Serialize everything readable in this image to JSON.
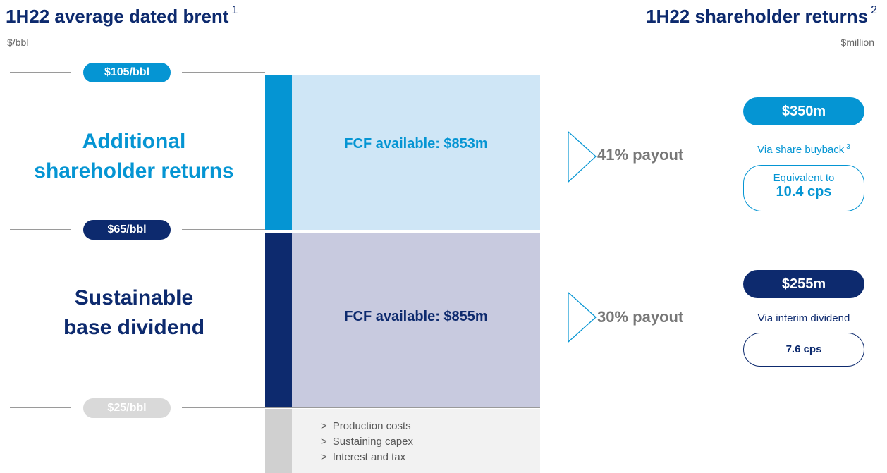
{
  "left_header": {
    "title": "1H22 average dated brent",
    "footnote": "1",
    "unit": "$/bbl"
  },
  "right_header": {
    "title": "1H22 shareholder returns",
    "footnote": "2",
    "unit": "$million"
  },
  "price_levels": [
    "$105/bbl",
    "$65/bbl",
    "$25/bbl"
  ],
  "tiers": [
    {
      "label_lines": [
        "Additional",
        "shareholder returns"
      ],
      "fcf": "FCF available: $853m",
      "payout": "41% payout",
      "amount": "$350m",
      "via": "Via share buyback",
      "via_footnote": "3",
      "equiv_lines": [
        "Equivalent to",
        "10.4 cps"
      ]
    },
    {
      "label_lines": [
        "Sustainable",
        "base dividend"
      ],
      "fcf": "FCF available: $855m",
      "payout": "30% payout",
      "amount": "$255m",
      "via": "Via interim dividend",
      "equiv_lines": [
        "7.6 cps"
      ]
    }
  ],
  "costs": {
    "marker": ">",
    "items": [
      "Production costs",
      "Sustaining capex",
      "Interest and tax"
    ]
  }
}
